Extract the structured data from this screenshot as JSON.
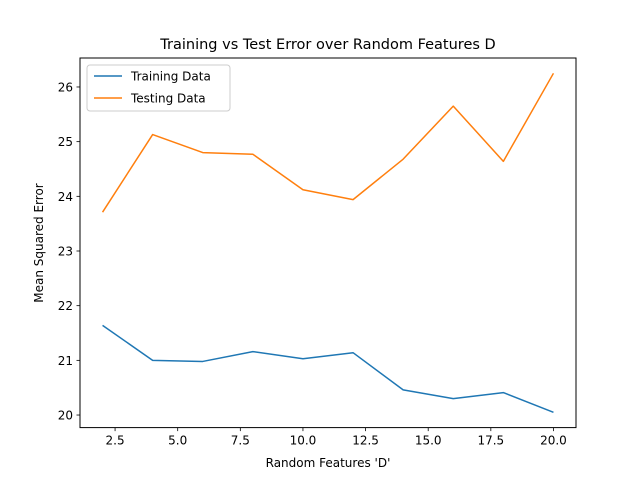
{
  "chart_data": {
    "type": "line",
    "title": "Training vs Test Error over Random Features D",
    "xlabel": "Random Features 'D'",
    "ylabel": "Mean Squared Error",
    "xlim": [
      1.1,
      20.9
    ],
    "ylim": [
      19.77,
      26.53
    ],
    "xticks": [
      2.5,
      5.0,
      7.5,
      10.0,
      12.5,
      15.0,
      17.5,
      20.0
    ],
    "xtick_labels": [
      "2.5",
      "5.0",
      "7.5",
      "10.0",
      "12.5",
      "15.0",
      "17.5",
      "20.0"
    ],
    "yticks": [
      20,
      21,
      22,
      23,
      24,
      25,
      26
    ],
    "ytick_labels": [
      "20",
      "21",
      "22",
      "23",
      "24",
      "25",
      "26"
    ],
    "grid": false,
    "legend_position": "top-left",
    "x": [
      2,
      4,
      6,
      8,
      10,
      12,
      14,
      16,
      18,
      20
    ],
    "series": [
      {
        "name": "Training Data",
        "color": "#1f77b4",
        "values": [
          21.64,
          21.0,
          20.98,
          21.16,
          21.03,
          21.14,
          20.46,
          20.3,
          20.41,
          20.05
        ]
      },
      {
        "name": "Testing Data",
        "color": "#ff7f0e",
        "values": [
          23.71,
          25.13,
          24.8,
          24.77,
          24.12,
          23.94,
          24.68,
          25.65,
          24.64,
          26.25
        ]
      }
    ]
  }
}
